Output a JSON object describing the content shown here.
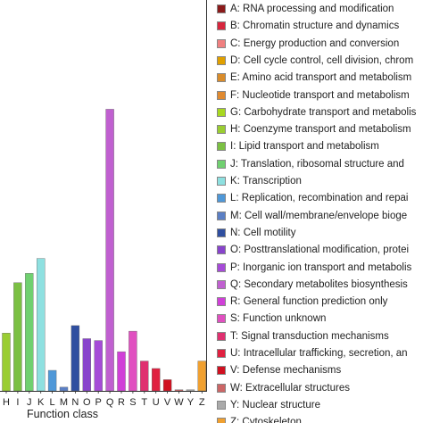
{
  "chart_data": {
    "type": "bar",
    "xlabel": "Function class",
    "ylabel": "",
    "ylim": [
      0,
      100
    ],
    "grid": false,
    "legend_position": "right",
    "categories": [
      "A",
      "B",
      "C",
      "D",
      "E",
      "F",
      "G",
      "H",
      "I",
      "J",
      "K",
      "L",
      "M",
      "N",
      "O",
      "P",
      "Q",
      "R",
      "S",
      "T",
      "U",
      "V",
      "W",
      "Y",
      "Z"
    ],
    "tick_labels_visible": [
      "H",
      "I",
      "J",
      "K",
      "L",
      "M",
      "N",
      "O",
      "P",
      "Q",
      "R",
      "S",
      "T",
      "U",
      "V",
      "W",
      "Y",
      "Z"
    ],
    "values": [
      0.3,
      0.3,
      0.3,
      0.3,
      0.3,
      0.3,
      7,
      15.5,
      29,
      31.5,
      35.5,
      5.5,
      1,
      17.5,
      14,
      13.5,
      75.5,
      10.5,
      16,
      8,
      6,
      3,
      0.3,
      0.3,
      8
    ],
    "colors": [
      "#8b1a1a",
      "#d7263d",
      "#f08080",
      "#e0a000",
      "#d98c2b",
      "#e08a30",
      "#a8d820",
      "#9acd32",
      "#7bc043",
      "#70d070",
      "#8ee0e0",
      "#4f98d8",
      "#5b7fc4",
      "#2f4fa0",
      "#8844cc",
      "#a64bd8",
      "#c060d0",
      "#d040d8",
      "#e050c0",
      "#e03070",
      "#e02040",
      "#d01020",
      "#cc6666",
      "#aaaaaa",
      "#f0a030"
    ],
    "legend": [
      {
        "code": "A",
        "label": "A:  RNA processing and modification"
      },
      {
        "code": "B",
        "label": "B:  Chromatin structure and dynamics"
      },
      {
        "code": "C",
        "label": "C:  Energy production and conversion"
      },
      {
        "code": "D",
        "label": "D:  Cell cycle control, cell division, chrom"
      },
      {
        "code": "E",
        "label": "E:  Amino acid transport and metabolism"
      },
      {
        "code": "F",
        "label": "F:  Nucleotide transport and metabolism"
      },
      {
        "code": "G",
        "label": "G:  Carbohydrate transport and metabolis"
      },
      {
        "code": "H",
        "label": "H:  Coenzyme transport and metabolism"
      },
      {
        "code": "I",
        "label": "I:  Lipid transport and metabolism"
      },
      {
        "code": "J",
        "label": "J:  Translation, ribosomal structure and"
      },
      {
        "code": "K",
        "label": "K:  Transcription"
      },
      {
        "code": "L",
        "label": "L:  Replication, recombination and repai"
      },
      {
        "code": "M",
        "label": "M:  Cell wall/membrane/envelope bioge"
      },
      {
        "code": "N",
        "label": "N:  Cell motility"
      },
      {
        "code": "O",
        "label": "O:  Posttranslational modification, protei"
      },
      {
        "code": "P",
        "label": "P:  Inorganic ion transport and metabolis"
      },
      {
        "code": "Q",
        "label": "Q:  Secondary metabolites biosynthesis"
      },
      {
        "code": "R",
        "label": "R:  General function prediction only"
      },
      {
        "code": "S",
        "label": "S:  Function unknown"
      },
      {
        "code": "T",
        "label": "T:  Signal transduction mechanisms"
      },
      {
        "code": "U",
        "label": "U:  Intracellular trafficking, secretion, an"
      },
      {
        "code": "V",
        "label": "V:  Defense mechanisms"
      },
      {
        "code": "W",
        "label": "W:  Extracellular structures"
      },
      {
        "code": "Y",
        "label": "Y:  Nuclear structure"
      },
      {
        "code": "Z",
        "label": "Z:  Cytoskeleton"
      }
    ]
  }
}
